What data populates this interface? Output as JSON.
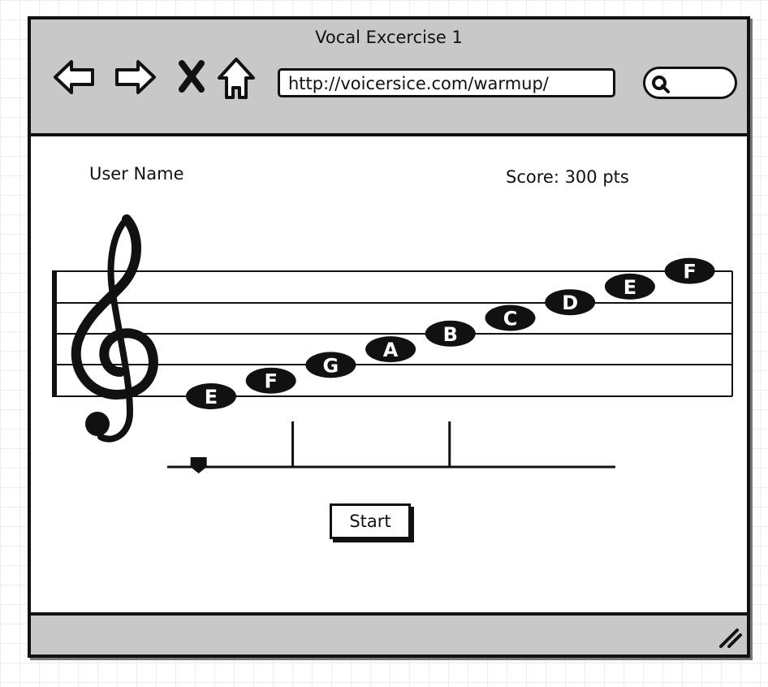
{
  "window": {
    "title": "Vocal Excercise 1"
  },
  "nav": {
    "back_icon": "arrow-left-icon",
    "forward_icon": "arrow-right-icon",
    "stop_icon": "close-icon",
    "home_icon": "home-icon"
  },
  "address_bar": {
    "url": "http://voicersice.com/warmup/"
  },
  "search": {
    "icon": "search-icon",
    "value": ""
  },
  "user": {
    "name": "User Name"
  },
  "score": {
    "text": "Score: 300 pts"
  },
  "staff": {
    "clef": "treble-clef-icon",
    "notes": [
      "E",
      "F",
      "G",
      "A",
      "B",
      "C",
      "D",
      "E",
      "F"
    ]
  },
  "progress": {
    "handle_position": 0.07,
    "markers": [
      0.28,
      0.63
    ]
  },
  "start_button": {
    "label": "Start"
  }
}
